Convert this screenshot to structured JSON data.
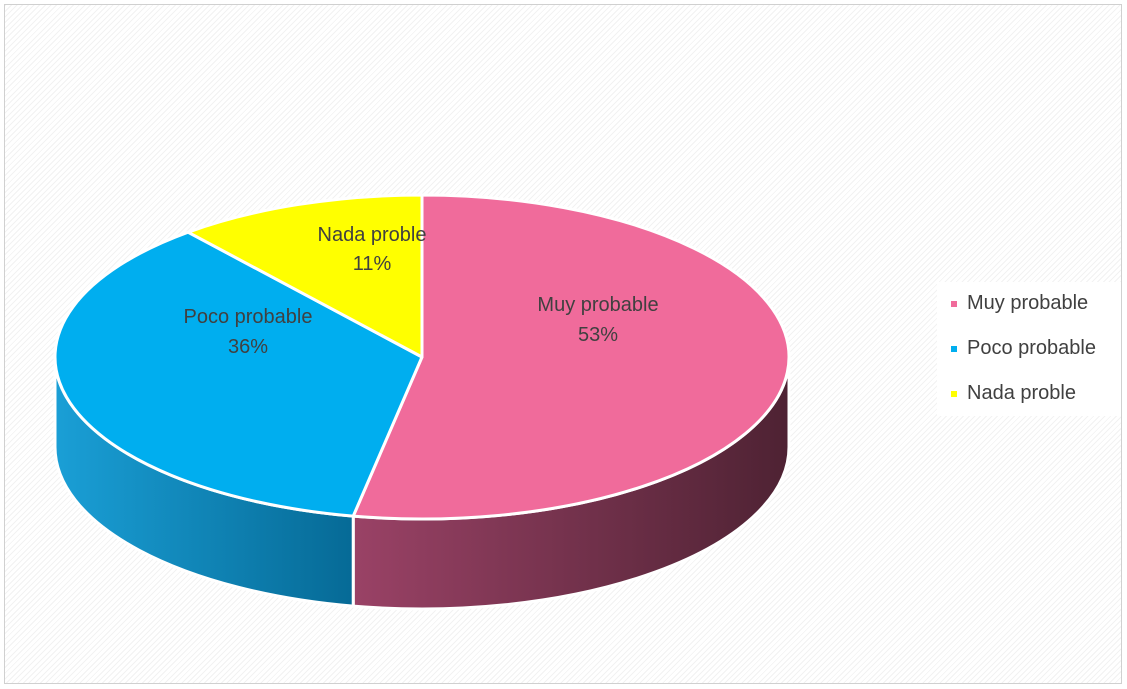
{
  "chart_data": {
    "type": "pie",
    "style": "3d-pie",
    "title": "",
    "categories": [
      "Muy probable",
      "Poco probable",
      "Nada proble"
    ],
    "values": [
      53,
      36,
      11
    ],
    "data_labels": [
      "53%",
      "36%",
      "11%"
    ],
    "colors": [
      "#f06b9b",
      "#00aeef",
      "#ffff00"
    ],
    "side_colors": [
      "#7a3550",
      "#0a7fb0",
      "#b3b300"
    ],
    "legend": {
      "position": "right",
      "items": [
        {
          "label": "Muy probable",
          "color": "#f06b9b"
        },
        {
          "label": "Poco probable",
          "color": "#00aeef"
        },
        {
          "label": "Nada proble",
          "color": "#ffff00"
        }
      ]
    }
  }
}
